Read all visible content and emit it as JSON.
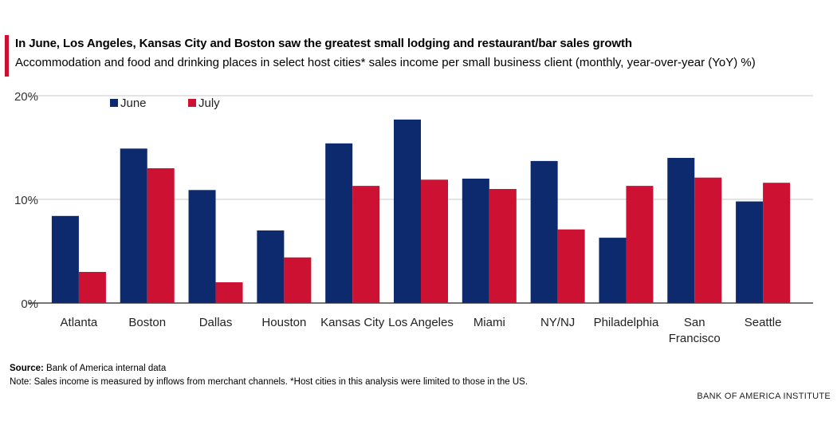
{
  "header": {
    "title": "In June, Los Angeles, Kansas City and Boston saw the greatest small lodging and restaurant/bar sales growth",
    "subtitle": "Accommodation and food and drinking places in select host cities* sales income per small business client (monthly, year-over-year (YoY) %)"
  },
  "footer": {
    "source_label": "Source:",
    "source_text": "Bank of America internal data",
    "note": "Note: Sales income is measured by inflows from merchant channels. *Host cities in this analysis were limited to those in the US.",
    "brand": "BANK OF AMERICA INSTITUTE"
  },
  "colors": {
    "june": "#0d2a6e",
    "july": "#cc1133",
    "accent": "#cc1133",
    "grid": "#c8c8c8"
  },
  "chart_data": {
    "type": "bar",
    "categories": [
      "Atlanta",
      "Boston",
      "Dallas",
      "Houston",
      "Kansas City",
      "Los Angeles",
      "Miami",
      "NY/NJ",
      "Philadelphia",
      "San Francisco",
      "Seattle"
    ],
    "category_labels": [
      [
        "Atlanta"
      ],
      [
        "Boston"
      ],
      [
        "Dallas"
      ],
      [
        "Houston"
      ],
      [
        "Kansas City"
      ],
      [
        "Los Angeles"
      ],
      [
        "Miami"
      ],
      [
        "NY/NJ"
      ],
      [
        "Philadelphia"
      ],
      [
        "San",
        "Francisco"
      ],
      [
        "Seattle"
      ]
    ],
    "series": [
      {
        "name": "June",
        "values": [
          8.4,
          14.9,
          10.9,
          7.0,
          15.4,
          17.7,
          12.0,
          13.7,
          6.3,
          14.0,
          9.8
        ]
      },
      {
        "name": "July",
        "values": [
          3.0,
          13.0,
          2.0,
          4.4,
          11.3,
          11.9,
          11.0,
          7.1,
          11.3,
          12.1,
          11.6
        ]
      }
    ],
    "ylim": [
      0,
      20
    ],
    "yticks": [
      0,
      10,
      20
    ],
    "ytick_labels": [
      "0%",
      "10%",
      "20%"
    ],
    "grid": true,
    "legend_position": "top-left"
  }
}
